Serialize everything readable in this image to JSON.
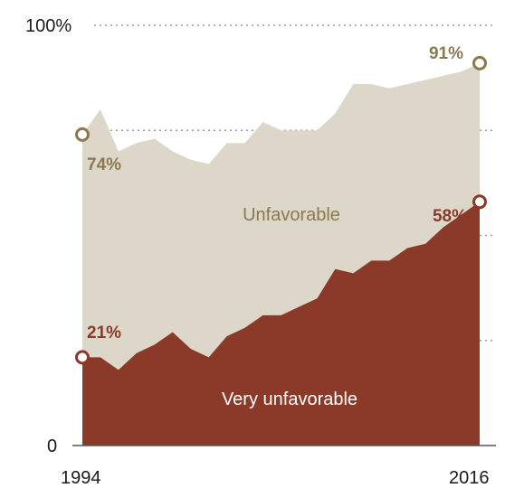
{
  "chart_data": {
    "type": "area",
    "title": "",
    "xlabel": "",
    "ylabel": "",
    "x_tick_labels": [
      "1994",
      "2016"
    ],
    "y_tick_labels": [
      "0",
      "100%"
    ],
    "xlim": [
      1994,
      2016
    ],
    "ylim": [
      0,
      100
    ],
    "grid": "dotted horizontal",
    "series": [
      {
        "name": "Unfavorable",
        "color": "#dcd7c9",
        "marker_color": "#8c7a4e",
        "points": [
          [
            1994,
            74
          ],
          [
            1995,
            80
          ],
          [
            1996,
            70
          ],
          [
            1997,
            72
          ],
          [
            1998,
            73
          ],
          [
            1999,
            70
          ],
          [
            2000,
            68
          ],
          [
            2001,
            67
          ],
          [
            2002,
            72
          ],
          [
            2003,
            72
          ],
          [
            2004,
            77
          ],
          [
            2005,
            75
          ],
          [
            2006,
            75
          ],
          [
            2007,
            75
          ],
          [
            2008,
            79
          ],
          [
            2009,
            86
          ],
          [
            2010,
            86
          ],
          [
            2011,
            85
          ],
          [
            2012,
            86
          ],
          [
            2013,
            87
          ],
          [
            2014,
            88
          ],
          [
            2015,
            89
          ],
          [
            2016,
            91
          ]
        ],
        "start_label": "74%",
        "end_label": "91%"
      },
      {
        "name": "Very unfavorable",
        "color": "#8b3a29",
        "marker_color": "#8b3a29",
        "points": [
          [
            1994,
            21
          ],
          [
            1995,
            21
          ],
          [
            1996,
            18
          ],
          [
            1997,
            22
          ],
          [
            1998,
            24
          ],
          [
            1999,
            27
          ],
          [
            2000,
            23
          ],
          [
            2001,
            21
          ],
          [
            2002,
            26
          ],
          [
            2003,
            28
          ],
          [
            2004,
            31
          ],
          [
            2005,
            31
          ],
          [
            2006,
            33
          ],
          [
            2007,
            35
          ],
          [
            2008,
            42
          ],
          [
            2009,
            41
          ],
          [
            2010,
            44
          ],
          [
            2011,
            44
          ],
          [
            2012,
            47
          ],
          [
            2013,
            48
          ],
          [
            2014,
            52
          ],
          [
            2015,
            55
          ],
          [
            2016,
            58
          ]
        ],
        "start_label": "21%",
        "end_label": "58%"
      }
    ]
  }
}
